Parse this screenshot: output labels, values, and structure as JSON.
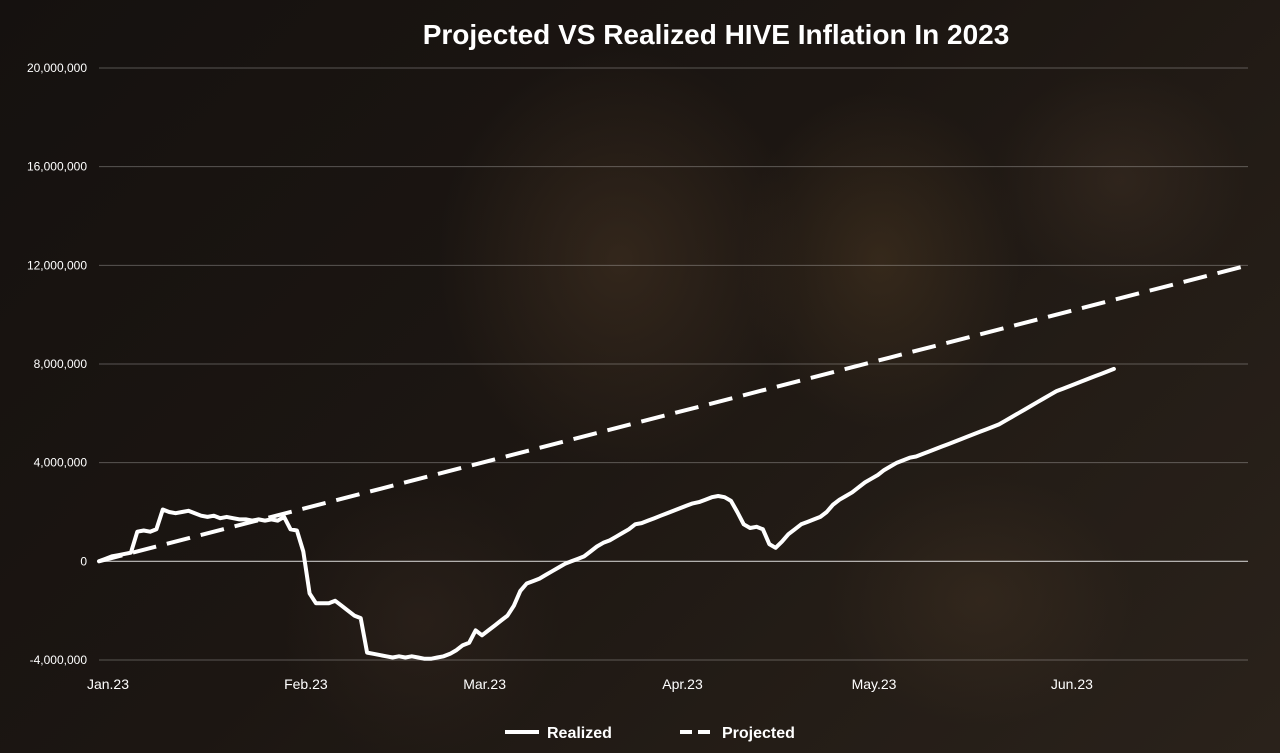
{
  "chart_data": {
    "type": "line",
    "title": "Projected VS Realized HIVE Inflation In 2023",
    "xlabel": "",
    "ylabel": "",
    "x_ticks": [
      "Jan.23",
      "Feb.23",
      "Mar.23",
      "Apr.23",
      "May.23",
      "Jun.23"
    ],
    "x_range": [
      0,
      180
    ],
    "ylim": [
      -4000000,
      20000000
    ],
    "y_ticks": [
      -4000000,
      0,
      4000000,
      8000000,
      12000000,
      16000000,
      20000000
    ],
    "y_tick_labels": [
      "-4,000,000",
      "0",
      "4,000,000",
      "8,000,000",
      "12,000,000",
      "16,000,000",
      "20,000,000"
    ],
    "grid": "horizontal",
    "legend_position": "bottom",
    "series": [
      {
        "name": "Realized",
        "style": "solid",
        "color": "#ffffff",
        "points": [
          [
            0,
            0
          ],
          [
            1,
            100000
          ],
          [
            2,
            200000
          ],
          [
            3,
            250000
          ],
          [
            4,
            300000
          ],
          [
            5,
            350000
          ],
          [
            6,
            1200000
          ],
          [
            7,
            1250000
          ],
          [
            8,
            1200000
          ],
          [
            9,
            1300000
          ],
          [
            10,
            2100000
          ],
          [
            11,
            2000000
          ],
          [
            12,
            1950000
          ],
          [
            13,
            2000000
          ],
          [
            14,
            2050000
          ],
          [
            15,
            1950000
          ],
          [
            16,
            1850000
          ],
          [
            17,
            1800000
          ],
          [
            18,
            1850000
          ],
          [
            19,
            1750000
          ],
          [
            20,
            1800000
          ],
          [
            21,
            1750000
          ],
          [
            22,
            1700000
          ],
          [
            23,
            1700000
          ],
          [
            24,
            1650000
          ],
          [
            25,
            1700000
          ],
          [
            26,
            1650000
          ],
          [
            27,
            1700000
          ],
          [
            28,
            1650000
          ],
          [
            29,
            1800000
          ],
          [
            30,
            1300000
          ],
          [
            31,
            1250000
          ],
          [
            32,
            400000
          ],
          [
            33,
            -1300000
          ],
          [
            34,
            -1700000
          ],
          [
            35,
            -1700000
          ],
          [
            36,
            -1700000
          ],
          [
            37,
            -1600000
          ],
          [
            38,
            -1800000
          ],
          [
            39,
            -2000000
          ],
          [
            40,
            -2200000
          ],
          [
            41,
            -2300000
          ],
          [
            42,
            -3700000
          ],
          [
            43,
            -3750000
          ],
          [
            44,
            -3800000
          ],
          [
            45,
            -3850000
          ],
          [
            46,
            -3900000
          ],
          [
            47,
            -3850000
          ],
          [
            48,
            -3900000
          ],
          [
            49,
            -3850000
          ],
          [
            50,
            -3900000
          ],
          [
            51,
            -3950000
          ],
          [
            52,
            -3950000
          ],
          [
            53,
            -3900000
          ],
          [
            54,
            -3850000
          ],
          [
            55,
            -3750000
          ],
          [
            56,
            -3600000
          ],
          [
            57,
            -3400000
          ],
          [
            58,
            -3300000
          ],
          [
            59,
            -2800000
          ],
          [
            60,
            -3000000
          ],
          [
            61,
            -2800000
          ],
          [
            62,
            -2600000
          ],
          [
            63,
            -2400000
          ],
          [
            64,
            -2200000
          ],
          [
            65,
            -1800000
          ],
          [
            66,
            -1200000
          ],
          [
            67,
            -900000
          ],
          [
            68,
            -800000
          ],
          [
            69,
            -700000
          ],
          [
            70,
            -550000
          ],
          [
            71,
            -400000
          ],
          [
            72,
            -250000
          ],
          [
            73,
            -100000
          ],
          [
            74,
            0
          ],
          [
            75,
            100000
          ],
          [
            76,
            200000
          ],
          [
            77,
            400000
          ],
          [
            78,
            600000
          ],
          [
            79,
            750000
          ],
          [
            80,
            850000
          ],
          [
            81,
            1000000
          ],
          [
            82,
            1150000
          ],
          [
            83,
            1300000
          ],
          [
            84,
            1500000
          ],
          [
            85,
            1550000
          ],
          [
            86,
            1650000
          ],
          [
            87,
            1750000
          ],
          [
            88,
            1850000
          ],
          [
            89,
            1950000
          ],
          [
            90,
            2050000
          ],
          [
            91,
            2150000
          ],
          [
            92,
            2250000
          ],
          [
            93,
            2350000
          ],
          [
            94,
            2400000
          ],
          [
            95,
            2500000
          ],
          [
            96,
            2600000
          ],
          [
            97,
            2650000
          ],
          [
            98,
            2600000
          ],
          [
            99,
            2450000
          ],
          [
            100,
            2000000
          ],
          [
            101,
            1500000
          ],
          [
            102,
            1350000
          ],
          [
            103,
            1400000
          ],
          [
            104,
            1300000
          ],
          [
            105,
            700000
          ],
          [
            106,
            550000
          ],
          [
            107,
            800000
          ],
          [
            108,
            1100000
          ],
          [
            109,
            1300000
          ],
          [
            110,
            1500000
          ],
          [
            111,
            1600000
          ],
          [
            112,
            1700000
          ],
          [
            113,
            1800000
          ],
          [
            114,
            2000000
          ],
          [
            115,
            2300000
          ],
          [
            116,
            2500000
          ],
          [
            117,
            2650000
          ],
          [
            118,
            2800000
          ],
          [
            119,
            3000000
          ],
          [
            120,
            3200000
          ],
          [
            121,
            3350000
          ],
          [
            122,
            3500000
          ],
          [
            123,
            3700000
          ],
          [
            124,
            3850000
          ],
          [
            125,
            4000000
          ],
          [
            126,
            4100000
          ],
          [
            127,
            4200000
          ],
          [
            128,
            4250000
          ],
          [
            129,
            4350000
          ],
          [
            130,
            4450000
          ],
          [
            131,
            4550000
          ],
          [
            132,
            4650000
          ],
          [
            133,
            4750000
          ],
          [
            134,
            4850000
          ],
          [
            135,
            4950000
          ],
          [
            136,
            5050000
          ],
          [
            137,
            5150000
          ],
          [
            138,
            5250000
          ],
          [
            139,
            5350000
          ],
          [
            140,
            5450000
          ],
          [
            141,
            5550000
          ],
          [
            142,
            5700000
          ],
          [
            143,
            5850000
          ],
          [
            144,
            6000000
          ],
          [
            145,
            6150000
          ],
          [
            146,
            6300000
          ],
          [
            147,
            6450000
          ],
          [
            148,
            6600000
          ],
          [
            149,
            6750000
          ],
          [
            150,
            6900000
          ],
          [
            151,
            7000000
          ],
          [
            152,
            7100000
          ],
          [
            153,
            7200000
          ],
          [
            154,
            7300000
          ],
          [
            155,
            7400000
          ],
          [
            156,
            7500000
          ],
          [
            157,
            7600000
          ],
          [
            158,
            7700000
          ],
          [
            159,
            7800000
          ]
        ]
      },
      {
        "name": "Projected",
        "style": "dashed",
        "color": "#ffffff",
        "points": [
          [
            0,
            0
          ],
          [
            180,
            12000000
          ]
        ]
      }
    ]
  }
}
